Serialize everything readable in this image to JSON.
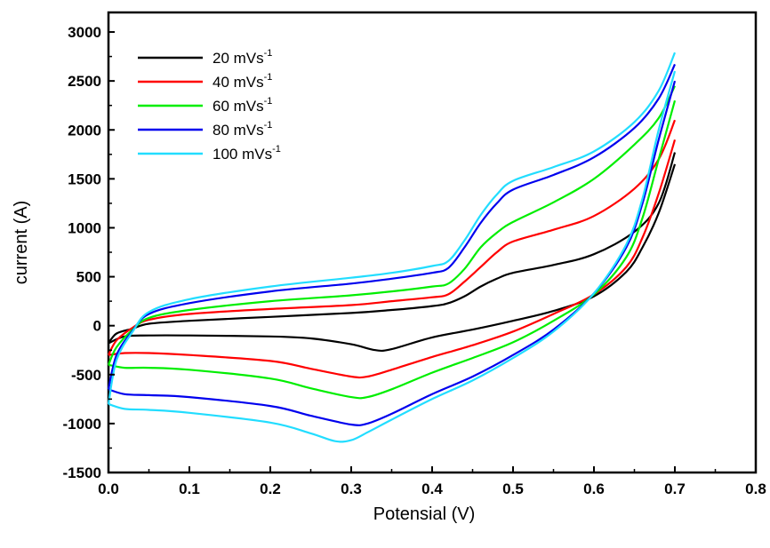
{
  "chart_data": {
    "type": "line",
    "title": "",
    "xlabel": "Potensial  (V)",
    "ylabel": "current  (A)",
    "xlim": [
      0.0,
      0.8
    ],
    "ylim": [
      -1500,
      3200
    ],
    "x_ticks": [
      "0.0",
      "0.1",
      "0.2",
      "0.3",
      "0.4",
      "0.5",
      "0.6",
      "0.7",
      "0.8"
    ],
    "y_ticks": [
      "-1500",
      "-1000",
      "-500",
      "0",
      "500",
      "1000",
      "1500",
      "2000",
      "2500",
      "3000"
    ],
    "grid": false,
    "legend_position": "top-left",
    "series": [
      {
        "name": "20 mVs",
        "name_sup": "-1",
        "color": "#000000",
        "anodic": [
          [
            0.0,
            -180
          ],
          [
            0.01,
            -80
          ],
          [
            0.03,
            -30
          ],
          [
            0.05,
            20
          ],
          [
            0.1,
            50
          ],
          [
            0.2,
            90
          ],
          [
            0.3,
            130
          ],
          [
            0.35,
            160
          ],
          [
            0.4,
            200
          ],
          [
            0.42,
            230
          ],
          [
            0.44,
            300
          ],
          [
            0.46,
            400
          ],
          [
            0.48,
            480
          ],
          [
            0.5,
            540
          ],
          [
            0.55,
            620
          ],
          [
            0.6,
            730
          ],
          [
            0.65,
            960
          ],
          [
            0.68,
            1250
          ],
          [
            0.7,
            1770
          ]
        ],
        "cathodic": [
          [
            0.7,
            1650
          ],
          [
            0.68,
            1150
          ],
          [
            0.66,
            800
          ],
          [
            0.64,
            550
          ],
          [
            0.6,
            300
          ],
          [
            0.55,
            150
          ],
          [
            0.5,
            50
          ],
          [
            0.45,
            -40
          ],
          [
            0.4,
            -120
          ],
          [
            0.35,
            -240
          ],
          [
            0.33,
            -250
          ],
          [
            0.3,
            -190
          ],
          [
            0.25,
            -130
          ],
          [
            0.2,
            -110
          ],
          [
            0.1,
            -100
          ],
          [
            0.05,
            -100
          ],
          [
            0.02,
            -110
          ],
          [
            0.0,
            -180
          ]
        ]
      },
      {
        "name": "40 mVs",
        "name_sup": "-1",
        "color": "#ff0000",
        "anodic": [
          [
            0.0,
            -300
          ],
          [
            0.01,
            -150
          ],
          [
            0.03,
            -20
          ],
          [
            0.05,
            60
          ],
          [
            0.1,
            120
          ],
          [
            0.2,
            170
          ],
          [
            0.3,
            210
          ],
          [
            0.35,
            250
          ],
          [
            0.4,
            290
          ],
          [
            0.42,
            320
          ],
          [
            0.44,
            450
          ],
          [
            0.46,
            600
          ],
          [
            0.48,
            750
          ],
          [
            0.5,
            860
          ],
          [
            0.55,
            980
          ],
          [
            0.6,
            1120
          ],
          [
            0.65,
            1400
          ],
          [
            0.68,
            1700
          ],
          [
            0.7,
            2100
          ]
        ],
        "cathodic": [
          [
            0.7,
            1900
          ],
          [
            0.68,
            1350
          ],
          [
            0.66,
            900
          ],
          [
            0.64,
            600
          ],
          [
            0.6,
            320
          ],
          [
            0.55,
            120
          ],
          [
            0.5,
            -60
          ],
          [
            0.45,
            -200
          ],
          [
            0.4,
            -320
          ],
          [
            0.35,
            -450
          ],
          [
            0.32,
            -520
          ],
          [
            0.3,
            -520
          ],
          [
            0.25,
            -440
          ],
          [
            0.2,
            -360
          ],
          [
            0.1,
            -300
          ],
          [
            0.05,
            -280
          ],
          [
            0.02,
            -280
          ],
          [
            0.0,
            -300
          ]
        ]
      },
      {
        "name": "60 mVs",
        "name_sup": "-1",
        "color": "#00ee00",
        "anodic": [
          [
            0.0,
            -400
          ],
          [
            0.01,
            -220
          ],
          [
            0.03,
            -40
          ],
          [
            0.05,
            80
          ],
          [
            0.1,
            160
          ],
          [
            0.2,
            250
          ],
          [
            0.3,
            310
          ],
          [
            0.35,
            350
          ],
          [
            0.4,
            400
          ],
          [
            0.42,
            430
          ],
          [
            0.44,
            580
          ],
          [
            0.46,
            800
          ],
          [
            0.48,
            950
          ],
          [
            0.5,
            1060
          ],
          [
            0.55,
            1260
          ],
          [
            0.6,
            1500
          ],
          [
            0.65,
            1850
          ],
          [
            0.68,
            2120
          ],
          [
            0.7,
            2450
          ]
        ],
        "cathodic": [
          [
            0.7,
            2300
          ],
          [
            0.68,
            1700
          ],
          [
            0.66,
            1100
          ],
          [
            0.64,
            700
          ],
          [
            0.6,
            320
          ],
          [
            0.55,
            50
          ],
          [
            0.5,
            -170
          ],
          [
            0.45,
            -330
          ],
          [
            0.4,
            -480
          ],
          [
            0.35,
            -650
          ],
          [
            0.32,
            -730
          ],
          [
            0.3,
            -730
          ],
          [
            0.25,
            -640
          ],
          [
            0.2,
            -540
          ],
          [
            0.1,
            -450
          ],
          [
            0.05,
            -430
          ],
          [
            0.02,
            -430
          ],
          [
            0.0,
            -400
          ]
        ]
      },
      {
        "name": "80 mVs",
        "name_sup": "-1",
        "color": "#0000ee",
        "anodic": [
          [
            0.0,
            -650
          ],
          [
            0.01,
            -300
          ],
          [
            0.03,
            -50
          ],
          [
            0.05,
            120
          ],
          [
            0.1,
            230
          ],
          [
            0.2,
            350
          ],
          [
            0.3,
            430
          ],
          [
            0.35,
            480
          ],
          [
            0.4,
            540
          ],
          [
            0.42,
            590
          ],
          [
            0.44,
            800
          ],
          [
            0.46,
            1050
          ],
          [
            0.48,
            1250
          ],
          [
            0.5,
            1390
          ],
          [
            0.55,
            1540
          ],
          [
            0.6,
            1720
          ],
          [
            0.65,
            2020
          ],
          [
            0.68,
            2320
          ],
          [
            0.7,
            2670
          ]
        ],
        "cathodic": [
          [
            0.7,
            2500
          ],
          [
            0.68,
            1900
          ],
          [
            0.66,
            1250
          ],
          [
            0.64,
            800
          ],
          [
            0.6,
            330
          ],
          [
            0.55,
            -40
          ],
          [
            0.5,
            -300
          ],
          [
            0.45,
            -520
          ],
          [
            0.4,
            -700
          ],
          [
            0.35,
            -900
          ],
          [
            0.32,
            -1000
          ],
          [
            0.3,
            -1010
          ],
          [
            0.25,
            -920
          ],
          [
            0.2,
            -820
          ],
          [
            0.1,
            -730
          ],
          [
            0.05,
            -710
          ],
          [
            0.02,
            -700
          ],
          [
            0.0,
            -650
          ]
        ]
      },
      {
        "name": "100 mVs",
        "name_sup": "-1",
        "color": "#22ddff",
        "anodic": [
          [
            0.0,
            -800
          ],
          [
            0.01,
            -350
          ],
          [
            0.03,
            -60
          ],
          [
            0.05,
            140
          ],
          [
            0.1,
            270
          ],
          [
            0.2,
            400
          ],
          [
            0.3,
            490
          ],
          [
            0.35,
            540
          ],
          [
            0.4,
            610
          ],
          [
            0.42,
            660
          ],
          [
            0.44,
            870
          ],
          [
            0.46,
            1130
          ],
          [
            0.48,
            1340
          ],
          [
            0.5,
            1480
          ],
          [
            0.55,
            1620
          ],
          [
            0.6,
            1780
          ],
          [
            0.65,
            2080
          ],
          [
            0.68,
            2400
          ],
          [
            0.7,
            2790
          ]
        ],
        "cathodic": [
          [
            0.7,
            2600
          ],
          [
            0.68,
            2000
          ],
          [
            0.66,
            1300
          ],
          [
            0.64,
            830
          ],
          [
            0.6,
            330
          ],
          [
            0.55,
            -60
          ],
          [
            0.5,
            -330
          ],
          [
            0.45,
            -560
          ],
          [
            0.4,
            -750
          ],
          [
            0.35,
            -960
          ],
          [
            0.32,
            -1090
          ],
          [
            0.3,
            -1170
          ],
          [
            0.28,
            -1180
          ],
          [
            0.25,
            -1100
          ],
          [
            0.2,
            -990
          ],
          [
            0.1,
            -890
          ],
          [
            0.05,
            -860
          ],
          [
            0.02,
            -850
          ],
          [
            0.0,
            -800
          ]
        ]
      }
    ]
  }
}
